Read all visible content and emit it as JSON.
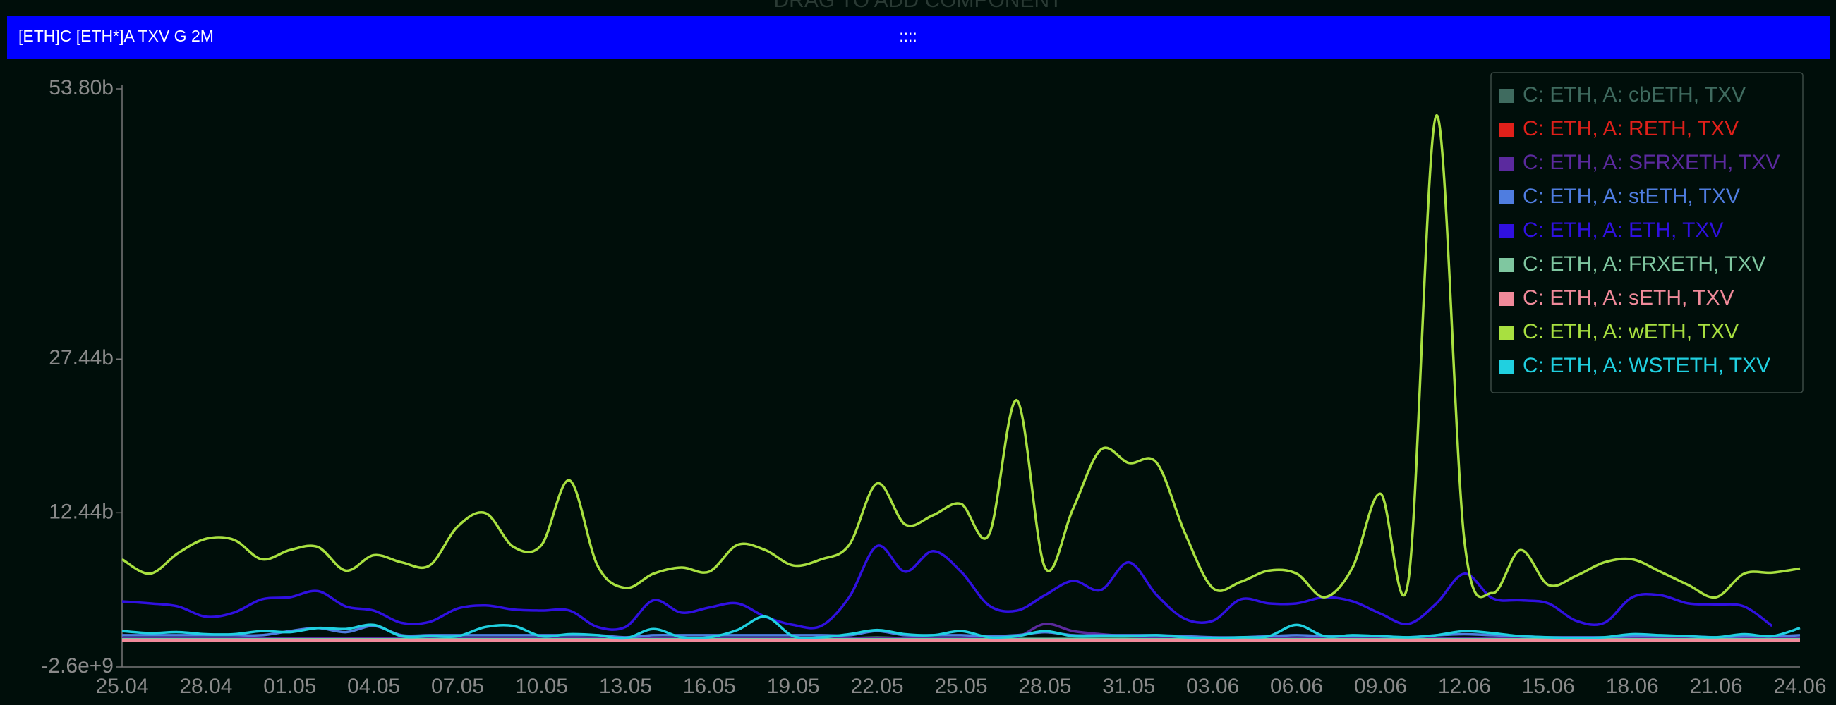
{
  "header": {
    "drag_hint": "DRAG TO ADD COMPONENT",
    "title": "[ETH]C [ETH*]A TXV G 2M",
    "handle": "::::"
  },
  "chart_data": {
    "type": "line",
    "categories": [
      "25.04",
      null,
      null,
      "28.04",
      null,
      null,
      "01.05",
      null,
      null,
      "04.05",
      null,
      null,
      "07.05",
      null,
      null,
      "10.05",
      null,
      null,
      "13.05",
      null,
      null,
      "16.05",
      null,
      null,
      "19.05",
      null,
      null,
      "22.05",
      null,
      null,
      "25.05",
      null,
      null,
      "28.05",
      null,
      null,
      "31.05",
      null,
      null,
      "03.06",
      null,
      null,
      "06.06",
      null,
      null,
      "09.06",
      null,
      null,
      "12.06",
      null,
      null,
      "15.06",
      null,
      null,
      "18.06",
      null,
      null,
      "21.06",
      null,
      null,
      "24.06"
    ],
    "ylim": [
      -2600000000.0,
      53800000000.0
    ],
    "yticks": [
      {
        "value": -2600000000.0,
        "label": "-2.6e+9"
      },
      {
        "value": 12440000000.0,
        "label": "12.44b"
      },
      {
        "value": 27440000000.0,
        "label": "27.44b"
      },
      {
        "value": 53800000000.0,
        "label": "53.80b"
      }
    ],
    "legend_position": "upper right",
    "series": [
      {
        "name": "C: ETH, A: cbETH, TXV",
        "color": "#3f6b5f",
        "values": [
          200000000.0,
          200000000.0,
          200000000.0,
          200000000.0,
          200000000.0,
          200000000.0,
          200000000.0,
          200000000.0,
          200000000.0,
          200000000.0,
          200000000.0,
          200000000.0,
          200000000.0,
          200000000.0,
          200000000.0,
          200000000.0,
          200000000.0,
          200000000.0,
          200000000.0,
          200000000.0,
          200000000.0,
          200000000.0,
          200000000.0,
          200000000.0,
          200000000.0,
          200000000.0,
          200000000.0,
          300000000.0,
          200000000.0,
          200000000.0,
          200000000.0,
          200000000.0,
          200000000.0,
          200000000.0,
          200000000.0,
          200000000.0,
          200000000.0,
          200000000.0,
          200000000.0,
          200000000.0,
          200000000.0,
          200000000.0,
          200000000.0,
          200000000.0,
          200000000.0,
          200000000.0,
          200000000.0,
          200000000.0,
          200000000.0,
          200000000.0,
          200000000.0,
          200000000.0,
          200000000.0,
          200000000.0,
          200000000.0,
          200000000.0,
          200000000.0,
          200000000.0,
          200000000.0,
          200000000.0,
          200000000.0
        ]
      },
      {
        "name": "C: ETH, A: RETH, TXV",
        "color": "#e0201a",
        "values": [
          100000000.0,
          100000000.0,
          100000000.0,
          100000000.0,
          100000000.0,
          100000000.0,
          100000000.0,
          100000000.0,
          100000000.0,
          100000000.0,
          100000000.0,
          100000000.0,
          100000000.0,
          100000000.0,
          100000000.0,
          100000000.0,
          100000000.0,
          100000000.0,
          100000000.0,
          100000000.0,
          100000000.0,
          100000000.0,
          100000000.0,
          100000000.0,
          100000000.0,
          100000000.0,
          100000000.0,
          100000000.0,
          100000000.0,
          100000000.0,
          100000000.0,
          100000000.0,
          100000000.0,
          100000000.0,
          100000000.0,
          100000000.0,
          100000000.0,
          100000000.0,
          100000000.0,
          100000000.0,
          100000000.0,
          100000000.0,
          100000000.0,
          100000000.0,
          100000000.0,
          100000000.0,
          100000000.0,
          100000000.0,
          100000000.0,
          100000000.0,
          100000000.0,
          100000000.0,
          100000000.0,
          100000000.0,
          100000000.0,
          100000000.0,
          100000000.0,
          100000000.0,
          100000000.0,
          100000000.0,
          100000000.0
        ]
      },
      {
        "name": "C: ETH, A: SFRXETH, TXV",
        "color": "#5b2a9e",
        "values": [
          200000000.0,
          200000000.0,
          200000000.0,
          200000000.0,
          200000000.0,
          200000000.0,
          200000000.0,
          200000000.0,
          200000000.0,
          200000000.0,
          200000000.0,
          200000000.0,
          200000000.0,
          200000000.0,
          200000000.0,
          200000000.0,
          200000000.0,
          200000000.0,
          200000000.0,
          200000000.0,
          200000000.0,
          200000000.0,
          200000000.0,
          200000000.0,
          200000000.0,
          200000000.0,
          200000000.0,
          200000000.0,
          200000000.0,
          200000000.0,
          200000000.0,
          200000000.0,
          300000000.0,
          1600000000.0,
          900000000.0,
          600000000.0,
          400000000.0,
          300000000.0,
          200000000.0,
          200000000.0,
          200000000.0,
          200000000.0,
          200000000.0,
          200000000.0,
          200000000.0,
          200000000.0,
          200000000.0,
          200000000.0,
          200000000.0,
          200000000.0,
          200000000.0,
          200000000.0,
          200000000.0,
          200000000.0,
          200000000.0,
          200000000.0,
          200000000.0,
          200000000.0,
          200000000.0,
          200000000.0,
          200000000.0
        ]
      },
      {
        "name": "C: ETH, A: stETH, TXV",
        "color": "#4f7de0",
        "values": [
          500000000.0,
          500000000.0,
          500000000.0,
          500000000.0,
          500000000.0,
          500000000.0,
          900000000.0,
          1200000000.0,
          800000000.0,
          1400000000.0,
          500000000.0,
          500000000.0,
          500000000.0,
          500000000.0,
          500000000.0,
          500000000.0,
          500000000.0,
          500000000.0,
          300000000.0,
          500000000.0,
          500000000.0,
          500000000.0,
          500000000.0,
          500000000.0,
          500000000.0,
          500000000.0,
          500000000.0,
          900000000.0,
          500000000.0,
          500000000.0,
          500000000.0,
          400000000.0,
          500000000.0,
          800000000.0,
          500000000.0,
          500000000.0,
          500000000.0,
          500000000.0,
          400000000.0,
          300000000.0,
          300000000.0,
          400000000.0,
          500000000.0,
          400000000.0,
          400000000.0,
          400000000.0,
          300000000.0,
          500000000.0,
          600000000.0,
          500000000.0,
          400000000.0,
          300000000.0,
          300000000.0,
          300000000.0,
          400000000.0,
          400000000.0,
          400000000.0,
          300000000.0,
          400000000.0,
          400000000.0,
          500000000.0
        ]
      },
      {
        "name": "C: ETH, A: ETH, TXV",
        "color": "#3010e0",
        "values": [
          3800000000.0,
          3600000000.0,
          3300000000.0,
          2300000000.0,
          2700000000.0,
          4000000000.0,
          4200000000.0,
          4800000000.0,
          3300000000.0,
          2900000000.0,
          1700000000.0,
          1800000000.0,
          3100000000.0,
          3400000000.0,
          3000000000.0,
          2900000000.0,
          2900000000.0,
          1300000000.0,
          1300000000.0,
          3900000000.0,
          2700000000.0,
          3200000000.0,
          3600000000.0,
          2300000000.0,
          1500000000.0,
          1400000000.0,
          4200000000.0,
          9200000000.0,
          6700000000.0,
          8700000000.0,
          6700000000.0,
          3400000000.0,
          2900000000.0,
          4400000000.0,
          5800000000.0,
          4900000000.0,
          7600000000.0,
          4400000000.0,
          2100000000.0,
          1900000000.0,
          4000000000.0,
          3600000000.0,
          3600000000.0,
          4200000000.0,
          3800000000.0,
          2600000000.0,
          1600000000.0,
          3600000000.0,
          6500000000.0,
          4100000000.0,
          3900000000.0,
          3600000000.0,
          1900000000.0,
          1700000000.0,
          4200000000.0,
          4400000000.0,
          3600000000.0,
          3500000000.0,
          3300000000.0,
          1400000000.0,
          null
        ]
      },
      {
        "name": "C: ETH, A: FRXETH, TXV",
        "color": "#7fc7a0",
        "values": [
          100000000.0,
          100000000.0,
          100000000.0,
          100000000.0,
          100000000.0,
          100000000.0,
          100000000.0,
          100000000.0,
          100000000.0,
          100000000.0,
          100000000.0,
          100000000.0,
          100000000.0,
          100000000.0,
          100000000.0,
          100000000.0,
          100000000.0,
          100000000.0,
          100000000.0,
          100000000.0,
          100000000.0,
          100000000.0,
          100000000.0,
          100000000.0,
          100000000.0,
          100000000.0,
          100000000.0,
          100000000.0,
          100000000.0,
          100000000.0,
          100000000.0,
          100000000.0,
          100000000.0,
          100000000.0,
          100000000.0,
          100000000.0,
          100000000.0,
          100000000.0,
          100000000.0,
          100000000.0,
          100000000.0,
          100000000.0,
          100000000.0,
          100000000.0,
          100000000.0,
          100000000.0,
          100000000.0,
          100000000.0,
          100000000.0,
          100000000.0,
          100000000.0,
          100000000.0,
          100000000.0,
          100000000.0,
          100000000.0,
          100000000.0,
          100000000.0,
          100000000.0,
          100000000.0,
          100000000.0,
          100000000.0
        ]
      },
      {
        "name": "C: ETH, A: sETH, TXV",
        "color": "#f08a9a",
        "values": [
          0,
          0,
          0,
          0,
          0,
          0,
          0,
          0,
          0,
          0,
          0,
          0,
          0,
          0,
          0,
          0,
          0,
          0,
          0,
          0,
          0,
          0,
          0,
          0,
          0,
          0,
          0,
          0,
          0,
          0,
          0,
          0,
          0,
          0,
          0,
          0,
          0,
          0,
          0,
          0,
          0,
          0,
          0,
          0,
          0,
          0,
          0,
          0,
          0,
          0,
          0,
          0,
          0,
          0,
          0,
          0,
          0,
          0,
          0,
          0,
          0
        ]
      },
      {
        "name": "C: ETH, A: wETH, TXV",
        "color": "#a8e040",
        "values": [
          7900000000.0,
          6500000000.0,
          8500000000.0,
          9900000000.0,
          9800000000.0,
          7900000000.0,
          8800000000.0,
          9100000000.0,
          6800000000.0,
          8300000000.0,
          7600000000.0,
          7300000000.0,
          11100000000.0,
          12400000000.0,
          9100000000.0,
          9300000000.0,
          15600000000.0,
          7300000000.0,
          5100000000.0,
          6500000000.0,
          7100000000.0,
          6700000000.0,
          9300000000.0,
          8800000000.0,
          7300000000.0,
          7900000000.0,
          9300000000.0,
          15300000000.0,
          11300000000.0,
          12200000000.0,
          13300000000.0,
          10300000000.0,
          23400000000.0,
          7100000000.0,
          12800000000.0,
          18600000000.0,
          17300000000.0,
          17300000000.0,
          10500000000.0,
          5100000000.0,
          5700000000.0,
          6800000000.0,
          6500000000.0,
          4200000000.0,
          7100000000.0,
          14300000000.0,
          5900000000.0,
          51200000000.0,
          9700000000.0,
          4600000000.0,
          8800000000.0,
          5400000000.0,
          6300000000.0,
          7600000000.0,
          7900000000.0,
          6700000000.0,
          5400000000.0,
          4200000000.0,
          6500000000.0,
          6600000000.0,
          7000000000.0
        ]
      },
      {
        "name": "C: ETH, A: WSTETH, TXV",
        "color": "#20d0e0",
        "values": [
          900000000.0,
          700000000.0,
          800000000.0,
          600000000.0,
          600000000.0,
          900000000.0,
          800000000.0,
          1200000000.0,
          1100000000.0,
          1500000000.0,
          400000000.0,
          400000000.0,
          400000000.0,
          1300000000.0,
          1400000000.0,
          400000000.0,
          600000000.0,
          500000000.0,
          200000000.0,
          1100000000.0,
          300000000.0,
          300000000.0,
          1000000000.0,
          2300000000.0,
          400000000.0,
          300000000.0,
          600000000.0,
          1000000000.0,
          600000000.0,
          500000000.0,
          900000000.0,
          300000000.0,
          400000000.0,
          900000000.0,
          400000000.0,
          400000000.0,
          400000000.0,
          500000000.0,
          300000000.0,
          200000000.0,
          300000000.0,
          400000000.0,
          1500000000.0,
          400000000.0,
          500000000.0,
          400000000.0,
          300000000.0,
          500000000.0,
          900000000.0,
          700000000.0,
          400000000.0,
          300000000.0,
          200000000.0,
          300000000.0,
          600000000.0,
          500000000.0,
          400000000.0,
          300000000.0,
          600000000.0,
          400000000.0,
          1200000000.0
        ]
      }
    ]
  }
}
